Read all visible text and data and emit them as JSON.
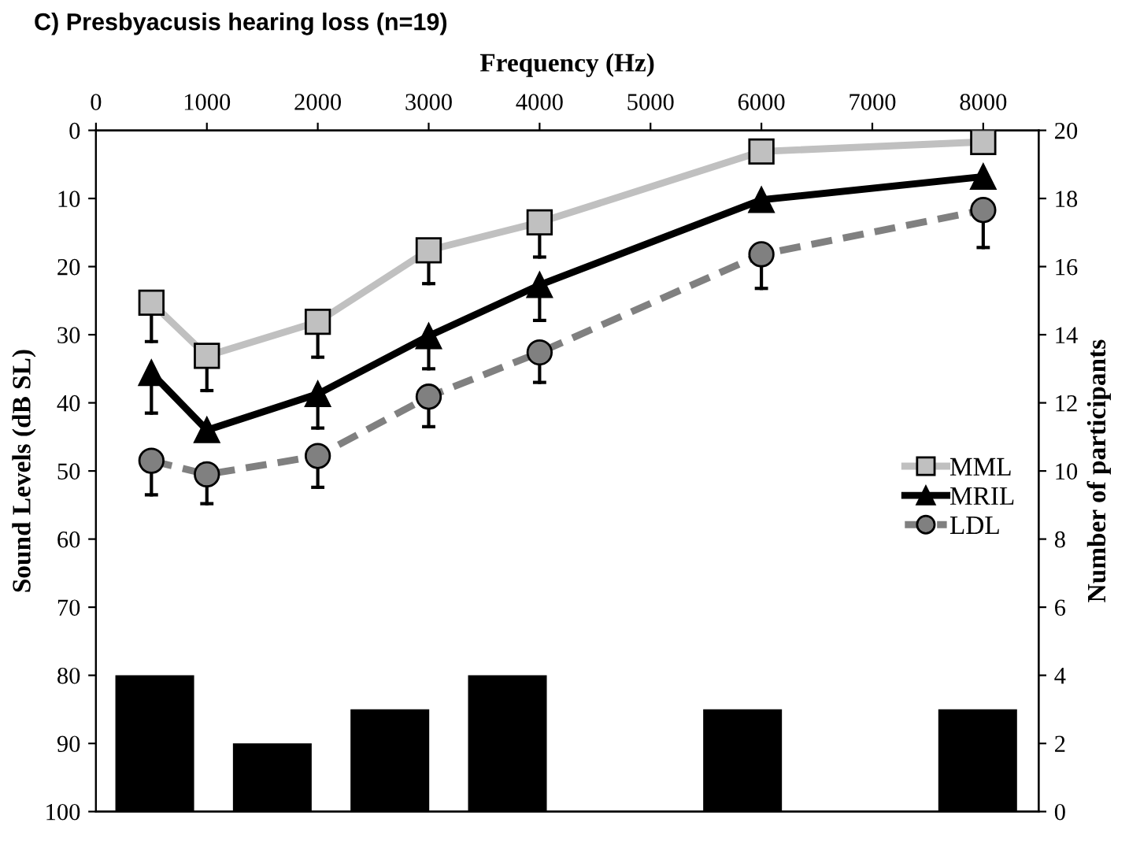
{
  "chart_data": {
    "type": "line",
    "title": "C) Presbyacusis hearing loss (n=19)",
    "xlabel": "Frequency (Hz)",
    "ylabel": "Sound Levels (dB SL)",
    "y2label": "Number of participants",
    "x": [
      500,
      1000,
      2000,
      3000,
      4000,
      6000,
      8000
    ],
    "xlim": [
      0,
      8500
    ],
    "xticks": [
      0,
      1000,
      2000,
      3000,
      4000,
      5000,
      6000,
      7000,
      8000
    ],
    "ylim": [
      100,
      0
    ],
    "yticks": [
      0,
      10,
      20,
      30,
      40,
      50,
      60,
      70,
      80,
      90,
      100
    ],
    "y2lim": [
      0,
      20
    ],
    "y2ticks": [
      0,
      2,
      4,
      6,
      8,
      10,
      12,
      14,
      16,
      18,
      20
    ],
    "legend": "right",
    "grid": false,
    "series": [
      {
        "name": "MML",
        "color": "#c0c0c0",
        "marker": "square",
        "line_style": "solid",
        "values": [
          25.3,
          33.1,
          28.1,
          17.6,
          13.5,
          3.1,
          1.7
        ],
        "errors": [
          [
            25.3,
            31
          ],
          [
            33.1,
            38.2
          ],
          [
            28.1,
            33.3
          ],
          [
            17.6,
            22.5
          ],
          [
            13.5,
            18.6
          ],
          null,
          null
        ]
      },
      {
        "name": "MRIL",
        "color": "#000000",
        "marker": "triangle",
        "line_style": "solid",
        "values": [
          35.6,
          44.0,
          38.7,
          30.2,
          22.7,
          10.2,
          6.8
        ],
        "errors": [
          [
            35.6,
            41.5
          ],
          null,
          [
            38.7,
            43.7
          ],
          [
            30.2,
            35
          ],
          [
            22.7,
            27.9
          ],
          null,
          null
        ]
      },
      {
        "name": "LDL",
        "color": "#808080",
        "marker": "circle",
        "line_style": "dashed",
        "values": [
          48.5,
          50.5,
          47.8,
          39.1,
          32.6,
          18.2,
          11.7
        ],
        "errors": [
          [
            48.5,
            53.5
          ],
          [
            50.5,
            54.8
          ],
          [
            47.8,
            52.4
          ],
          [
            39.1,
            43.5
          ],
          [
            32.6,
            37
          ],
          [
            18.2,
            23.2
          ],
          [
            11.7,
            17.2
          ]
        ]
      },
      {
        "type": "bar",
        "axis": "y2",
        "color": "#000000",
        "x": [
          530,
          1590,
          2650,
          3710,
          5830,
          7950
        ],
        "values": [
          4,
          2,
          3,
          4,
          3,
          3
        ]
      }
    ]
  }
}
